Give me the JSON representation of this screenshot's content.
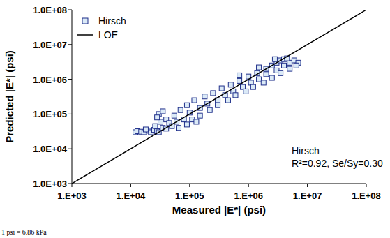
{
  "chart_data": {
    "type": "scatter",
    "x_label": "Measured |E*| (psi)",
    "y_label": "Predicted |E*| (psi)",
    "log": true,
    "grid": false,
    "legend": "top-left",
    "xlim": [
      1000,
      100000000
    ],
    "ylim": [
      1000,
      100000000
    ],
    "xticks": [
      {
        "value": 1000,
        "label": "1.E+03"
      },
      {
        "value": 10000,
        "label": "1.E+04"
      },
      {
        "value": 100000,
        "label": "1.E+05"
      },
      {
        "value": 1000000,
        "label": "1.E+06"
      },
      {
        "value": 10000000,
        "label": "1.E+07"
      },
      {
        "value": 100000000,
        "label": "1.E+08"
      }
    ],
    "yticks": [
      {
        "value": 1000,
        "label": "1.0E+03"
      },
      {
        "value": 10000,
        "label": "1.0E+04"
      },
      {
        "value": 100000,
        "label": "1.0E+05"
      },
      {
        "value": 1000000,
        "label": "1.0E+06"
      },
      {
        "value": 10000000,
        "label": "1.0E+07"
      },
      {
        "value": 100000000,
        "label": "1.0E+08"
      }
    ],
    "annotations": [
      "Hirsch",
      "R²=0.92, Se/Sy=0.30",
      "1 psi = 6.86 kPa"
    ],
    "series": [
      {
        "name": "Hirsch",
        "type": "scatter",
        "marker": "square",
        "color": "#1f2f8a",
        "x": [
          12000,
          13000,
          15000,
          17000,
          20000,
          22000,
          25000,
          28000,
          30000,
          35000,
          40000,
          18000,
          26000,
          32000,
          30000,
          35000,
          28000,
          40000,
          45000,
          50000,
          55000,
          60000,
          70000,
          80000,
          90000,
          100000,
          110000,
          120000,
          150000,
          150000,
          180000,
          200000,
          220000,
          250000,
          300000,
          300000,
          350000,
          400000,
          450000,
          500000,
          550000,
          600000,
          700000,
          800000,
          900000,
          1000000,
          1100000,
          1200000,
          1400000,
          1500000,
          1800000,
          2000000,
          2000000,
          2500000,
          2500000,
          3000000,
          3000000,
          3500000,
          3500000,
          4000000,
          4000000,
          5000000,
          5000000,
          6000000,
          7000000,
          6500000,
          4500000,
          2800000,
          1500000,
          700000,
          130000,
          65000,
          90000
        ],
        "values": [
          30000,
          32000,
          31000,
          30000,
          33000,
          30000,
          35000,
          32000,
          30000,
          40000,
          38000,
          36000,
          45000,
          60000,
          100000,
          120000,
          80000,
          70000,
          55000,
          45000,
          90000,
          60000,
          130000,
          70000,
          180000,
          110000,
          70000,
          250000,
          150000,
          90000,
          320000,
          200000,
          130000,
          400000,
          250000,
          180000,
          550000,
          350000,
          250000,
          700000,
          450000,
          350000,
          900000,
          600000,
          450000,
          1200000,
          800000,
          600000,
          1500000,
          1000000,
          800000,
          2000000,
          1400000,
          1100000,
          2500000,
          1800000,
          3000000,
          1500000,
          3500000,
          2500000,
          3800000,
          3000000,
          2000000,
          3500000,
          3000000,
          2500000,
          4000000,
          3800000,
          2200000,
          1300000,
          60000,
          40000,
          50000
        ]
      },
      {
        "name": "LOE",
        "type": "line",
        "line_style": "solid",
        "color": "#000000",
        "x": [
          1000,
          100000000
        ],
        "values": [
          1000,
          100000000
        ]
      }
    ]
  }
}
